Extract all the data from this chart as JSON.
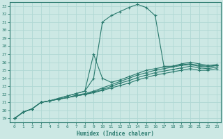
{
  "xlabel": "Humidex (Indice chaleur)",
  "xlim": [
    -0.5,
    23.5
  ],
  "ylim": [
    18.5,
    33.5
  ],
  "xticks": [
    0,
    1,
    2,
    3,
    4,
    5,
    6,
    7,
    8,
    9,
    10,
    11,
    12,
    13,
    14,
    15,
    16,
    17,
    18,
    19,
    20,
    21,
    22,
    23
  ],
  "yticks": [
    19,
    20,
    21,
    22,
    23,
    24,
    25,
    26,
    27,
    28,
    29,
    30,
    31,
    32,
    33
  ],
  "line_color": "#2a7a6e",
  "bg_color": "#cce8e4",
  "grid_color": "#b0d8d4",
  "lines": [
    {
      "x": [
        0,
        1,
        2,
        3,
        4,
        5,
        6,
        7,
        8,
        9,
        10,
        11,
        12,
        13,
        14,
        15,
        16,
        17,
        18,
        19,
        20,
        21,
        22,
        23
      ],
      "y": [
        19,
        19.8,
        20.2,
        21.0,
        21.2,
        21.5,
        21.8,
        22.1,
        22.4,
        24.0,
        31.0,
        31.8,
        32.3,
        32.8,
        33.2,
        32.8,
        31.8,
        25.5,
        25.5,
        25.8,
        26.0,
        25.8,
        25.6,
        25.7
      ]
    },
    {
      "x": [
        3,
        4,
        5,
        6,
        7,
        8,
        9,
        10,
        11,
        12,
        13,
        14,
        15,
        16,
        17,
        18,
        19,
        20,
        21,
        22,
        23
      ],
      "y": [
        21.0,
        21.2,
        21.5,
        21.8,
        22.1,
        22.4,
        27.0,
        24.0,
        23.5,
        23.8,
        24.2,
        24.6,
        25.0,
        25.2,
        25.4,
        25.5,
        25.7,
        25.8,
        25.6,
        25.5,
        25.6
      ]
    },
    {
      "x": [
        0,
        1,
        2,
        3,
        4,
        5,
        6,
        7,
        8,
        9,
        10,
        11,
        12,
        13,
        14,
        15,
        16,
        17,
        18,
        19,
        20,
        21,
        22,
        23
      ],
      "y": [
        19,
        19.8,
        20.2,
        21.0,
        21.2,
        21.4,
        21.6,
        21.8,
        22.0,
        22.2,
        22.5,
        22.8,
        23.1,
        23.4,
        23.8,
        24.1,
        24.4,
        24.6,
        24.8,
        25.0,
        25.2,
        25.0,
        25.0,
        25.2
      ]
    },
    {
      "x": [
        0,
        1,
        2,
        3,
        4,
        5,
        6,
        7,
        8,
        9,
        10,
        11,
        12,
        13,
        14,
        15,
        16,
        17,
        18,
        19,
        20,
        21,
        22,
        23
      ],
      "y": [
        19,
        19.8,
        20.2,
        21.0,
        21.2,
        21.4,
        21.6,
        21.8,
        22.0,
        22.3,
        22.6,
        23.0,
        23.4,
        23.7,
        24.1,
        24.4,
        24.7,
        24.9,
        25.1,
        25.3,
        25.5,
        25.3,
        25.2,
        25.4
      ]
    },
    {
      "x": [
        0,
        1,
        2,
        3,
        4,
        5,
        6,
        7,
        8,
        9,
        10,
        11,
        12,
        13,
        14,
        15,
        16,
        17,
        18,
        19,
        20,
        21,
        22,
        23
      ],
      "y": [
        19,
        19.8,
        20.2,
        21.0,
        21.2,
        21.4,
        21.6,
        21.9,
        22.1,
        22.4,
        22.8,
        23.2,
        23.6,
        24.0,
        24.4,
        24.7,
        25.0,
        25.2,
        25.4,
        25.6,
        25.7,
        25.5,
        25.4,
        25.6
      ]
    }
  ]
}
